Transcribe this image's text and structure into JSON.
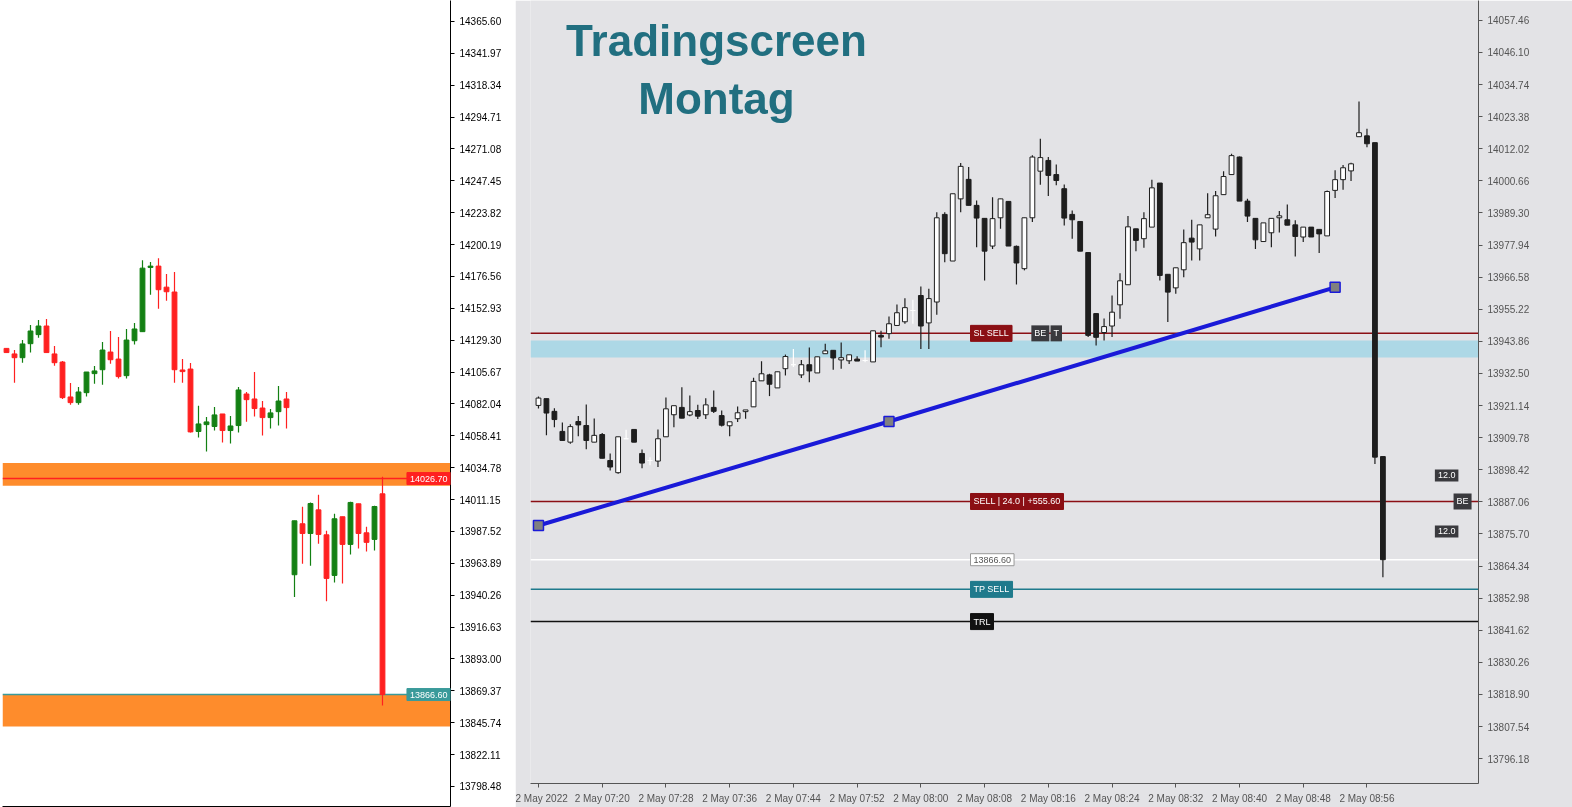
{
  "chart_data": [
    {
      "type": "candlestick",
      "tick_labels": "y",
      "categories": [
        null,
        null,
        null,
        null,
        null,
        null,
        null,
        null,
        null,
        null,
        null,
        null,
        null,
        null,
        null,
        null,
        null,
        null,
        null,
        null,
        null,
        null,
        null,
        null,
        null,
        null,
        null,
        null,
        null,
        null,
        null,
        null,
        null,
        null,
        null,
        null,
        null,
        null,
        null,
        null,
        null,
        null,
        null,
        null,
        null,
        null,
        null,
        null,
        null,
        null,
        null,
        null,
        null,
        null,
        null,
        null
      ],
      "ohlc": [
        [
          14123.2,
          14123.2,
          14120.1,
          14120.1
        ],
        [
          14119.1,
          14122.0,
          14097.8,
          14116.3
        ],
        [
          14116.3,
          14129.4,
          14112.6,
          14126.5
        ],
        [
          14126.7,
          14140.5,
          14120.1,
          14136.1
        ],
        [
          14133.4,
          14144.2,
          14131.1,
          14139.8
        ],
        [
          14139.8,
          14144.9,
          14120.1,
          14120.1
        ],
        [
          14119.1,
          14124.9,
          14110.4,
          14112.6
        ],
        [
          14113.1,
          14113.9,
          14085.7,
          14086.7
        ],
        [
          14087.2,
          14097.6,
          14081.5,
          14083.0
        ],
        [
          14083.0,
          14094.6,
          14081.5,
          14090.9
        ],
        [
          14090.4,
          14105.7,
          14087.5,
          14105.7
        ],
        [
          14104.5,
          14110.2,
          14097.0,
          14106.5
        ],
        [
          14107.4,
          14127.9,
          14096.3,
          14122.0
        ],
        [
          14120.5,
          14136.1,
          14111.9,
          14114.8
        ],
        [
          14115.3,
          14131.6,
          14100.8,
          14102.3
        ],
        [
          14103.0,
          14137.6,
          14100.8,
          14129.4
        ],
        [
          14128.9,
          14142.0,
          14126.0,
          14137.6
        ],
        [
          14135.6,
          14188.6,
          14135.6,
          14182.7
        ],
        [
          14183.2,
          14187.2,
          14163.0,
          14184.2
        ],
        [
          14184.2,
          14190.1,
          14152.6,
          14166.7
        ],
        [
          14168.6,
          14178.3,
          14158.5,
          14165.2
        ],
        [
          14165.0,
          14179.8,
          14097.8,
          14107.4
        ],
        [
          14107.2,
          14115.3,
          14097.8,
          14106.0
        ],
        [
          14107.9,
          14112.4,
          14060.8,
          14061.3
        ],
        [
          14061.6,
          14080.6,
          14057.1,
          14067.2
        ],
        [
          14066.7,
          14072.4,
          14046.7,
          14068.7
        ],
        [
          14065.3,
          14079.8,
          14062.3,
          14073.9
        ],
        [
          14074.6,
          14074.6,
          14053.4,
          14062.3
        ],
        [
          14062.3,
          14073.1,
          14052.7,
          14065.7
        ],
        [
          14066.0,
          14094.6,
          14060.8,
          14092.4
        ],
        [
          14089.4,
          14090.9,
          14068.9,
          14085.2
        ],
        [
          14085.7,
          14105.7,
          14072.7,
          14078.6
        ],
        [
          14079.0,
          14084.2,
          14058.6,
          14071.9
        ],
        [
          14071.9,
          14078.3,
          14063.8,
          14075.4
        ],
        [
          14076.3,
          14095.4,
          14066.0,
          14084.2
        ],
        [
          14085.7,
          14090.9,
          14063.8,
          14079.3
        ],
        [
          13955.4,
          13995.4,
          13938.9,
          13995.4
        ],
        [
          13993.2,
          14005.8,
          13963.6,
          13986.0
        ],
        [
          13986.0,
          14009.0,
          13962.1,
          14008.2
        ],
        [
          14003.5,
          14014.7,
          13978.4,
          13985.3
        ],
        [
          13985.0,
          13988.0,
          13935.7,
          13952.7
        ],
        [
          13954.9,
          14000.6,
          13949.7,
          13996.9
        ],
        [
          13998.4,
          13998.4,
          13949.0,
          13977.9
        ],
        [
          13977.9,
          14009.5,
          13970.5,
          14009.0
        ],
        [
          14008.0,
          14008.0,
          13974.9,
          13986.0
        ],
        [
          13986.5,
          13991.0,
          13972.7,
          13979.4
        ],
        [
          13981.6,
          14006.5,
          13973.4,
          14006.0
        ],
        [
          14015.4,
          14028.0,
          13858.4,
          13866.6
        ],
        null,
        null,
        null,
        null,
        null,
        null,
        null,
        null
      ],
      "colors": [
        "#ff2020",
        "#ff2020",
        "#138013",
        "#138013",
        "#138013",
        "#ff2020",
        "#ff2020",
        "#ff2020",
        "#ff2020",
        "#138013",
        "#138013",
        "#138013",
        "#138013",
        "#ff2020",
        "#ff2020",
        "#138013",
        "#138013",
        "#138013",
        "#138013",
        "#ff2020",
        "#ff2020",
        "#ff2020",
        "#ff2020",
        "#ff2020",
        "#138013",
        "#138013",
        "#138013",
        "#ff2020",
        "#138013",
        "#138013",
        "#ff2020",
        "#ff2020",
        "#ff2020",
        "#138013",
        "#138013",
        "#ff2020",
        "#138013",
        "#ff2020",
        "#138013",
        "#ff2020",
        "#ff2020",
        "#138013",
        "#ff2020",
        "#138013",
        "#ff2020",
        "#ff2020",
        "#138013",
        "#ff2020",
        null,
        null,
        null,
        null,
        null,
        null,
        null,
        null
      ],
      "ylim": [
        13783.6,
        14381.1
      ],
      "yticks": [
        {
          "value": 14365.6,
          "label": "14365.60"
        },
        14341.97,
        14318.34,
        14294.71,
        14271.08,
        14247.45,
        14223.82,
        14200.19,
        14176.56,
        14152.93,
        {
          "value": 14129.3,
          "label": "14129.30"
        },
        14105.67,
        14082.04,
        14058.41,
        14034.78,
        14011.15,
        13987.52,
        13963.89,
        13940.26,
        13916.63,
        {
          "value": 13893.0,
          "label": "13893.00"
        },
        13869.37,
        13845.74,
        13822.11,
        13798.48
      ],
      "ref_lines": [
        {
          "axis": "y",
          "value": 14026.7,
          "label": "14026.70",
          "color": "#ff2020"
        },
        {
          "axis": "y",
          "value": 13866.6,
          "label": "13866.60",
          "color": "#3a9a9a"
        }
      ],
      "bands": [
        {
          "axis": "y",
          "from": 14021.3,
          "to": 14038.3,
          "color": "#fe8c2c"
        },
        {
          "axis": "y",
          "from": 13842.9,
          "to": 13866.6,
          "color": "#fe8c2c"
        }
      ]
    },
    {
      "type": "candlestick",
      "title": "Tradingscreen\nMontag",
      "x": [
        "2022-05-02T07:12",
        "2022-05-02T07:13",
        "2022-05-02T07:14",
        "2022-05-02T07:15",
        "2022-05-02T07:16",
        "2022-05-02T07:17",
        "2022-05-02T07:18",
        "2022-05-02T07:19",
        "2022-05-02T07:20",
        "2022-05-02T07:21",
        "2022-05-02T07:22",
        "2022-05-02T07:23",
        "2022-05-02T07:24",
        "2022-05-02T07:25",
        "2022-05-02T07:26",
        "2022-05-02T07:27",
        "2022-05-02T07:28",
        "2022-05-02T07:29",
        "2022-05-02T07:30",
        "2022-05-02T07:31",
        "2022-05-02T07:32",
        "2022-05-02T07:33",
        "2022-05-02T07:34",
        "2022-05-02T07:35",
        "2022-05-02T07:36",
        "2022-05-02T07:37",
        "2022-05-02T07:38",
        "2022-05-02T07:39",
        "2022-05-02T07:40",
        "2022-05-02T07:41",
        "2022-05-02T07:42",
        "2022-05-02T07:43",
        "2022-05-02T07:44",
        "2022-05-02T07:45",
        "2022-05-02T07:46",
        "2022-05-02T07:47",
        "2022-05-02T07:48",
        "2022-05-02T07:49",
        "2022-05-02T07:50",
        "2022-05-02T07:51",
        "2022-05-02T07:52",
        "2022-05-02T07:53",
        "2022-05-02T07:54",
        "2022-05-02T07:55",
        "2022-05-02T07:56",
        "2022-05-02T07:57",
        "2022-05-02T07:58",
        "2022-05-02T07:59",
        "2022-05-02T08:00",
        "2022-05-02T08:01",
        "2022-05-02T08:02",
        "2022-05-02T08:03",
        "2022-05-02T08:04",
        "2022-05-02T08:05",
        "2022-05-02T08:06",
        "2022-05-02T08:07",
        "2022-05-02T08:08",
        "2022-05-02T08:09",
        "2022-05-02T08:10",
        "2022-05-02T08:11",
        "2022-05-02T08:12",
        "2022-05-02T08:13",
        "2022-05-02T08:14",
        "2022-05-02T08:15",
        "2022-05-02T08:16",
        "2022-05-02T08:17",
        "2022-05-02T08:18",
        "2022-05-02T08:19",
        "2022-05-02T08:20",
        "2022-05-02T08:21",
        "2022-05-02T08:22",
        "2022-05-02T08:23",
        "2022-05-02T08:24",
        "2022-05-02T08:25",
        "2022-05-02T08:26",
        "2022-05-02T08:27",
        "2022-05-02T08:28",
        "2022-05-02T08:29",
        "2022-05-02T08:30",
        "2022-05-02T08:31",
        "2022-05-02T08:32",
        "2022-05-02T08:33",
        "2022-05-02T08:34",
        "2022-05-02T08:35",
        "2022-05-02T08:36",
        "2022-05-02T08:37",
        "2022-05-02T08:38",
        "2022-05-02T08:39",
        "2022-05-02T08:40",
        "2022-05-02T08:41",
        "2022-05-02T08:42",
        "2022-05-02T08:43",
        "2022-05-02T08:44",
        "2022-05-02T08:45",
        "2022-05-02T08:46",
        "2022-05-02T08:47",
        "2022-05-02T08:48",
        "2022-05-02T08:49",
        "2022-05-02T08:50",
        "2022-05-02T08:51",
        "2022-05-02T08:52",
        "2022-05-02T08:53",
        "2022-05-02T08:54",
        "2022-05-02T08:55",
        "2022-05-02T08:56",
        "2022-05-02T08:57",
        "2022-05-02T08:58"
      ],
      "ohlc": [
        [
          13921.2,
          13924.4,
          13920.1,
          13923.8
        ],
        [
          13923.6,
          13923.6,
          13910.6,
          13918.5
        ],
        [
          13919.1,
          13920.2,
          13913.5,
          13916.2
        ],
        [
          13912.0,
          13915.2,
          13908.8,
          13908.8
        ],
        [
          13908.2,
          13914.5,
          13907.6,
          13913.7
        ],
        [
          13915.5,
          13917.5,
          13910.3,
          13914.3
        ],
        [
          13914.1,
          13921.5,
          13905.7,
          13908.8
        ],
        [
          13908.2,
          13916.6,
          13908.2,
          13910.6
        ],
        [
          13910.9,
          13911.4,
          13902.5,
          13902.5
        ],
        [
          13901.7,
          13904.2,
          13898.2,
          13899.4
        ],
        [
          13897.4,
          13910.1,
          13897.0,
          13910.1
        ],
        [
          13909.4,
          13912.6,
          13909.4,
          13909.4
        ],
        [
          13912.7,
          13912.7,
          13908.2,
          13908.2
        ],
        [
          13904.2,
          13905.6,
          13899.0,
          13900.8
        ],
        [
          13901.7,
          13902.9,
          13900.0,
          13901.7
        ],
        [
          13901.5,
          13912.7,
          13899.4,
          13909.4
        ],
        [
          13910.1,
          13924.0,
          13910.1,
          13920.0
        ],
        [
          13917.9,
          13921.1,
          13913.5,
          13921.1
        ],
        [
          13920.5,
          13927.6,
          13916.7,
          13916.7
        ],
        [
          13917.8,
          13924.7,
          13917.4,
          13919.0
        ],
        [
          13919.4,
          13921.4,
          13916.4,
          13917.4
        ],
        [
          13917.9,
          13923.7,
          13916.4,
          13921.4
        ],
        [
          13920.5,
          13926.5,
          13918.5,
          13919.1
        ],
        [
          13917.6,
          13919.4,
          13913.7,
          13914.2
        ],
        [
          13914.0,
          13915.4,
          13910.3,
          13915.4
        ],
        [
          13916.5,
          13920.8,
          13915.3,
          13918.6
        ],
        [
          13919.0,
          13919.6,
          13916.5,
          13919.6
        ],
        [
          13920.7,
          13931.0,
          13920.7,
          13929.7
        ],
        [
          13929.9,
          13936.8,
          13929.9,
          13932.4
        ],
        [
          13932.0,
          13932.4,
          13924.5,
          13928.7
        ],
        [
          13927.4,
          13933.1,
          13927.4,
          13933.1
        ],
        [
          13934.2,
          13939.2,
          13931.8,
          13938.5
        ],
        [
          13935.6,
          13941.2,
          13934.8,
          13935.6
        ],
        [
          13932.0,
          13937.3,
          13930.9,
          13935.6
        ],
        [
          13935.6,
          13941.7,
          13929.4,
          13933.4
        ],
        [
          13932.7,
          13938.4,
          13932.7,
          13938.4
        ],
        [
          13939.5,
          13943.0,
          13939.5,
          13940.5
        ],
        [
          13940.7,
          13940.7,
          13933.8,
          13938.0
        ],
        [
          13937.3,
          13943.5,
          13934.2,
          13938.1
        ],
        [
          13937.0,
          13939.1,
          13935.9,
          13939.1
        ],
        [
          13937.6,
          13938.6,
          13936.9,
          13936.9
        ],
        [
          13937.1,
          13940.7,
          13936.5,
          13937.1
        ],
        [
          13936.6,
          13947.6,
          13936.6,
          13947.6
        ],
        [
          13946.0,
          13947.6,
          13941.8,
          13945.4
        ],
        [
          13946.6,
          13952.7,
          13944.8,
          13950.1
        ],
        [
          13949.5,
          13956.9,
          13949.5,
          13954.0
        ],
        [
          13950.8,
          13959.1,
          13950.1,
          13955.8
        ],
        [
          13954.8,
          13958.6,
          13950.1,
          13954.8
        ],
        [
          13960.1,
          13963.3,
          13941.2,
          13949.3
        ],
        [
          13950.4,
          13962.5,
          13941.2,
          13959.0
        ],
        [
          13957.8,
          13989.6,
          13953.3,
          13987.6
        ],
        [
          13988.8,
          13989.6,
          13971.9,
          13974.9
        ],
        [
          13972.3,
          13996.1,
          13972.3,
          13996.1
        ],
        [
          13994.3,
          14007.0,
          13989.6,
          14005.8
        ],
        [
          14001.2,
          14005.6,
          13992.0,
          13992.0
        ],
        [
          13992.0,
          13993.7,
          13977.2,
          13987.5
        ],
        [
          13987.4,
          13987.4,
          13965.4,
          13975.8
        ],
        [
          13977.6,
          13994.9,
          13976.6,
          13987.3
        ],
        [
          13987.6,
          13994.3,
          13983.7,
          13994.3
        ],
        [
          13993.4,
          13993.4,
          13977.6,
          13977.6
        ],
        [
          13977.5,
          13977.8,
          13964.0,
          13971.6
        ],
        [
          13969.6,
          13987.6,
          13969.0,
          13987.6
        ],
        [
          13987.6,
          14009.7,
          13986.1,
          14009.1
        ],
        [
          14004.1,
          14015.6,
          13999.3,
          14008.9
        ],
        [
          14007.9,
          14009.1,
          13995.3,
          14002.6
        ],
        [
          14002.9,
          14006.5,
          13999.1,
          14000.8
        ],
        [
          13997.9,
          13999.4,
          13984.9,
          13987.5
        ],
        [
          13988.8,
          13990.2,
          13980.2,
          13986.9
        ],
        [
          13986.3,
          13986.3,
          13975.8,
          13975.8
        ],
        [
          13975.3,
          13975.3,
          13945.4,
          13946.0
        ],
        [
          13953.7,
          13953.9,
          13942.4,
          13945.3
        ],
        [
          13947.0,
          13952.0,
          13944.2,
          13949.1
        ],
        [
          13949.3,
          13960.1,
          13945.4,
          13954.2
        ],
        [
          13956.8,
          13968.0,
          13951.9,
          13965.3
        ],
        [
          13963.9,
          13988.2,
          13963.9,
          13984.4
        ],
        [
          13983.7,
          13983.7,
          13975.8,
          13979.6
        ],
        [
          13980.2,
          13989.6,
          13977.0,
          13987.3
        ],
        [
          13984.3,
          14001.1,
          13984.3,
          13998.2
        ],
        [
          13999.9,
          13999.9,
          13965.4,
          13967.2
        ],
        [
          13967.6,
          13967.6,
          13950.7,
          13961.3
        ],
        [
          13962.8,
          13969.9,
          13960.7,
          13969.9
        ],
        [
          13969.2,
          13983.5,
          13966.6,
          13978.8
        ],
        [
          13980.4,
          13986.9,
          13972.5,
          13979.0
        ],
        [
          13976.6,
          13985.1,
          13972.5,
          13985.1
        ],
        [
          13987.6,
          13996.3,
          13987.6,
          13988.7
        ],
        [
          13983.6,
          13997.1,
          13981.0,
          13995.4
        ],
        [
          13995.8,
          14004.1,
          13995.8,
          14002.2
        ],
        [
          14002.9,
          14010.3,
          14002.9,
          14009.6
        ],
        [
          14009.1,
          14009.3,
          13993.5,
          13993.5
        ],
        [
          13993.5,
          13994.3,
          13986.1,
          13988.2
        ],
        [
          13987.4,
          13987.4,
          13976.6,
          13979.8
        ],
        [
          13979.2,
          13985.8,
          13979.2,
          13985.8
        ],
        [
          13982.3,
          13987.4,
          13977.2,
          13987.4
        ],
        [
          13987.6,
          13990.0,
          13982.4,
          13988.3
        ],
        [
          13986.9,
          13992.3,
          13985.0,
          13985.0
        ],
        [
          13985.1,
          13986.7,
          13973.9,
          13981.0
        ],
        [
          13980.8,
          13984.3,
          13979.0,
          13984.3
        ],
        [
          13984.3,
          13984.3,
          13980.8,
          13980.8
        ],
        [
          13983.5,
          13983.5,
          13975.1,
          13981.9
        ],
        [
          13981.2,
          13997.3,
          13981.2,
          13996.9
        ],
        [
          13997.3,
          14004.4,
          13994.6,
          14001.1
        ],
        [
          14001.1,
          14006.3,
          13997.5,
          14005.3
        ],
        [
          14004.2,
          14007.1,
          14000.6,
          14006.7
        ],
        [
          14016.3,
          14028.8,
          14016.3,
          14017.7
        ],
        [
          14016.6,
          14019.1,
          14012.6,
          14013.8
        ],
        [
          14014.2,
          14014.2,
          13900.5,
          13902.9
        ],
        [
          13903.1,
          13903.1,
          13860.4,
          13866.6
        ]
      ],
      "colors": [
        "#ffffff",
        "#1e1e1e",
        "#1e1e1e",
        "#1e1e1e",
        "#ffffff",
        "#1e1e1e",
        "#1e1e1e",
        "#ffffff",
        "#1e1e1e",
        "#1e1e1e",
        "#ffffff",
        "#ffffff",
        "#1e1e1e",
        "#1e1e1e",
        "#ffffff",
        "#ffffff",
        "#ffffff",
        "#ffffff",
        "#1e1e1e",
        "#ffffff",
        "#1e1e1e",
        "#ffffff",
        "#1e1e1e",
        "#1e1e1e",
        "#ffffff",
        "#ffffff",
        "#ffffff",
        "#ffffff",
        "#ffffff",
        "#1e1e1e",
        "#ffffff",
        "#ffffff",
        "#ffffff",
        "#ffffff",
        "#1e1e1e",
        "#ffffff",
        "#ffffff",
        "#1e1e1e",
        "#ffffff",
        "#ffffff",
        "#1e1e1e",
        "#ffffff",
        "#ffffff",
        "#1e1e1e",
        "#ffffff",
        "#ffffff",
        "#ffffff",
        "#ffffff",
        "#1e1e1e",
        "#ffffff",
        "#ffffff",
        "#1e1e1e",
        "#ffffff",
        "#ffffff",
        "#1e1e1e",
        "#1e1e1e",
        "#1e1e1e",
        "#ffffff",
        "#ffffff",
        "#1e1e1e",
        "#1e1e1e",
        "#ffffff",
        "#ffffff",
        "#ffffff",
        "#1e1e1e",
        "#1e1e1e",
        "#1e1e1e",
        "#1e1e1e",
        "#1e1e1e",
        "#1e1e1e",
        "#1e1e1e",
        "#ffffff",
        "#ffffff",
        "#ffffff",
        "#ffffff",
        "#1e1e1e",
        "#ffffff",
        "#ffffff",
        "#1e1e1e",
        "#1e1e1e",
        "#ffffff",
        "#ffffff",
        "#1e1e1e",
        "#ffffff",
        "#ffffff",
        "#ffffff",
        "#ffffff",
        "#ffffff",
        "#1e1e1e",
        "#1e1e1e",
        "#1e1e1e",
        "#ffffff",
        "#ffffff",
        "#ffffff",
        "#1e1e1e",
        "#1e1e1e",
        "#ffffff",
        "#1e1e1e",
        "#1e1e1e",
        "#ffffff",
        "#ffffff",
        "#ffffff",
        "#ffffff",
        "#ffffff",
        "#1e1e1e",
        "#1e1e1e",
        "#1e1e1e"
      ],
      "series": [
        {
          "type": "line",
          "x": [
            "2022-05-02T07:12",
            "2022-05-02T07:56",
            "2022-05-02T08:52"
          ],
          "values": [
            13878.7,
            13915.5,
            13963.0
          ],
          "color": "#1a1ad8",
          "marker": "square"
        }
      ],
      "xlim": [
        "2022-05-02T07:11",
        "2022-05-02T09:10"
      ],
      "xticks": [
        {
          "value": "2022-05-02T07:12",
          "label": "2 May 2022"
        },
        {
          "value": "2022-05-02T07:20",
          "label": "2 May 07:20"
        },
        {
          "value": "2022-05-02T07:28",
          "label": "2 May 07:28"
        },
        {
          "value": "2022-05-02T07:36",
          "label": "2 May 07:36"
        },
        {
          "value": "2022-05-02T07:44",
          "label": "2 May 07:44"
        },
        {
          "value": "2022-05-02T07:52",
          "label": "2 May 07:52"
        },
        {
          "value": "2022-05-02T08:00",
          "label": "2 May 08:00"
        },
        {
          "value": "2022-05-02T08:08",
          "label": "2 May 08:08"
        },
        {
          "value": "2022-05-02T08:16",
          "label": "2 May 08:16"
        },
        {
          "value": "2022-05-02T08:24",
          "label": "2 May 08:24"
        },
        {
          "value": "2022-05-02T08:32",
          "label": "2 May 08:32"
        },
        {
          "value": "2022-05-02T08:40",
          "label": "2 May 08:40"
        },
        {
          "value": "2022-05-02T08:48",
          "label": "2 May 08:48"
        },
        {
          "value": "2022-05-02T08:56",
          "label": "2 May 08:56"
        }
      ],
      "ylim": [
        13787.4,
        14064.5
      ],
      "yticks": [
        14057.46,
        {
          "value": 14046.1,
          "label": "14046.10"
        },
        14034.74,
        14023.38,
        14012.02,
        14000.66,
        {
          "value": 13989.3,
          "label": "13989.30"
        },
        13977.94,
        13966.58,
        13955.22,
        13943.86,
        {
          "value": 13932.5,
          "label": "13932.50"
        },
        13921.14,
        13909.78,
        13898.42,
        13887.06,
        {
          "value": 13875.7,
          "label": "13875.70"
        },
        13864.34,
        13852.98,
        13841.62,
        13830.26,
        {
          "value": 13818.9,
          "label": "13818.90"
        },
        13807.54,
        13796.18
      ],
      "ref_lines": [
        {
          "axis": "y",
          "value": 13946.7,
          "label": "SL SELL",
          "color": "#8b0f14"
        },
        {
          "axis": "y",
          "value": 13887.2,
          "label": "SELL | 24.0 | +555.60",
          "color": "#8b0f14"
        },
        {
          "axis": "y",
          "value": 13866.6,
          "label": "13866.60",
          "color": "#ffffff"
        },
        {
          "axis": "y",
          "value": 13856.1,
          "label": "TP SELL",
          "color": "#1f7a8c"
        },
        {
          "axis": "y",
          "value": 13844.7,
          "label": "TRL",
          "color": "#111111"
        }
      ],
      "bands": [
        {
          "axis": "y",
          "from": 13938.2,
          "to": 13944.2,
          "color": "#add8e6"
        }
      ],
      "annotations": [
        {
          "text": "BE",
          "x": "2022-05-02T08:15",
          "y": 13946.7
        },
        {
          "text": "T",
          "x": "2022-05-02T08:17",
          "y": 13946.7
        },
        {
          "text": "12.0",
          "x": "2022-05-02T09:06",
          "y": 13896.4
        },
        {
          "text": "BE",
          "x": "2022-05-02T09:08",
          "y": 13887.2
        },
        {
          "text": "12.0",
          "x": "2022-05-02T09:06",
          "y": 13876.6
        }
      ]
    }
  ]
}
